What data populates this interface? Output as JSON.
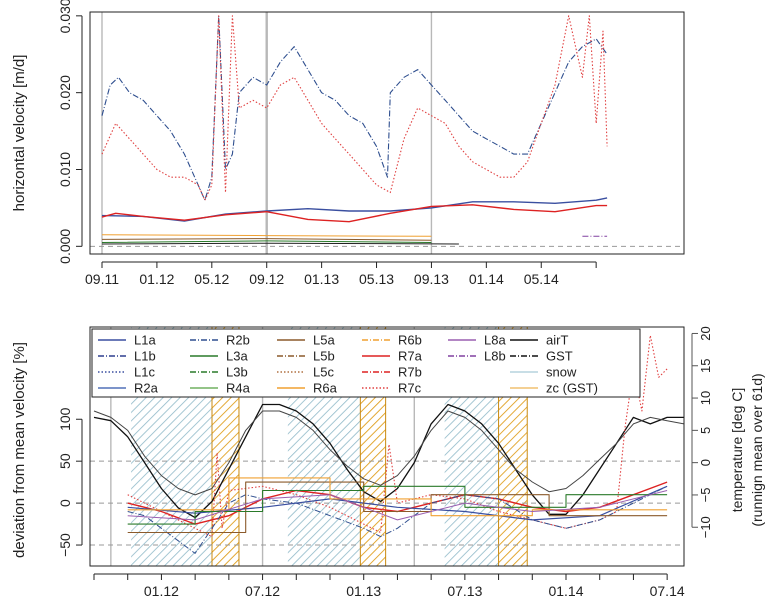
{
  "chart_data": [
    {
      "type": "line",
      "panel": "top",
      "ylabel": "horizontal velocity [m/d]",
      "ylim": [
        -0.001,
        0.0305
      ],
      "yticks": [
        0.0,
        0.01,
        0.02,
        0.03
      ],
      "ytick_labels": [
        "0.000",
        "0.010",
        "0.020",
        "0.030"
      ],
      "xlim": [
        0,
        42.4
      ],
      "xticks": [
        0,
        4,
        8,
        12,
        16,
        20,
        24,
        28,
        32,
        36
      ],
      "xtick_labels": [
        "09.11",
        "01.12",
        "05.12",
        "09.12",
        "01.13",
        "05.13",
        "09.13",
        "01.14",
        "05.14"
      ],
      "xtick_label_pos": [
        0,
        4,
        8,
        12,
        16,
        20,
        24,
        28,
        32
      ],
      "grey_vlines": [
        0,
        12,
        24
      ],
      "series": [
        {
          "name": "R2b",
          "color": "#2f4f8f",
          "dash": "6,2,1,2",
          "width": 1.1,
          "x": [
            0,
            0.6,
            1.2,
            2,
            3,
            4,
            5,
            6,
            7,
            7.5,
            8,
            8.5,
            9,
            9.5,
            10,
            11,
            12,
            13,
            14,
            15,
            16,
            17,
            18,
            19,
            20,
            20.8,
            21,
            22,
            23,
            24,
            25,
            26,
            27,
            28,
            29,
            30,
            31,
            32,
            33,
            34,
            35,
            36,
            36.8
          ],
          "y": [
            0.017,
            0.021,
            0.022,
            0.02,
            0.019,
            0.017,
            0.015,
            0.012,
            0.008,
            0.006,
            0.009,
            0.03,
            0.01,
            0.012,
            0.02,
            0.022,
            0.021,
            0.024,
            0.026,
            0.023,
            0.02,
            0.019,
            0.017,
            0.016,
            0.013,
            0.009,
            0.02,
            0.022,
            0.023,
            0.021,
            0.019,
            0.017,
            0.015,
            0.014,
            0.013,
            0.012,
            0.012,
            0.016,
            0.02,
            0.024,
            0.026,
            0.027,
            0.025
          ]
        },
        {
          "name": "R7c",
          "color": "#e04040",
          "dash": "1.5,2",
          "width": 1.1,
          "x": [
            0,
            1,
            2,
            3,
            4,
            5,
            6,
            7,
            7.5,
            8,
            8.5,
            9,
            9.5,
            10,
            11,
            12,
            13,
            14,
            15,
            16,
            17,
            18,
            19,
            20,
            21,
            22,
            23,
            24,
            25,
            26,
            27,
            28,
            29,
            30,
            31,
            32,
            33,
            34,
            35,
            35.5,
            36,
            36.5,
            36.8
          ],
          "y": [
            0.012,
            0.016,
            0.014,
            0.012,
            0.01,
            0.009,
            0.009,
            0.008,
            0.006,
            0.008,
            0.03,
            0.007,
            0.03,
            0.018,
            0.019,
            0.018,
            0.021,
            0.022,
            0.019,
            0.016,
            0.014,
            0.012,
            0.01,
            0.008,
            0.007,
            0.014,
            0.018,
            0.017,
            0.016,
            0.013,
            0.011,
            0.01,
            0.009,
            0.009,
            0.011,
            0.016,
            0.021,
            0.03,
            0.022,
            0.03,
            0.016,
            0.028,
            0.013
          ]
        },
        {
          "name": "L1a",
          "color": "#3a4fa0",
          "dash": "",
          "width": 1.4,
          "x": [
            0,
            3,
            6,
            9,
            12,
            15,
            18,
            21,
            24,
            27,
            30,
            33,
            36,
            36.8
          ],
          "y": [
            0.004,
            0.0039,
            0.0033,
            0.0042,
            0.0046,
            0.0049,
            0.0046,
            0.0046,
            0.005,
            0.0058,
            0.0058,
            0.0056,
            0.006,
            0.0063
          ]
        },
        {
          "name": "R7a",
          "color": "#dd2222",
          "dash": "",
          "width": 1.4,
          "x": [
            0,
            1,
            3,
            6,
            9,
            12,
            15,
            18,
            21,
            24,
            27,
            30,
            33,
            36,
            36.8
          ],
          "y": [
            0.0038,
            0.0043,
            0.0039,
            0.0034,
            0.0041,
            0.0045,
            0.0035,
            0.0032,
            0.0043,
            0.0052,
            0.0054,
            0.0048,
            0.0045,
            0.0053,
            0.0053
          ]
        },
        {
          "name": "R6a",
          "color": "#f0a030",
          "dash": "",
          "width": 1.0,
          "x": [
            0,
            12,
            24
          ],
          "y": [
            0.0015,
            0.0014,
            0.0013
          ]
        },
        {
          "name": "L5a",
          "color": "#8b5a2b",
          "dash": "",
          "width": 1.0,
          "x": [
            0,
            12,
            24
          ],
          "y": [
            0.0009,
            0.001,
            0.0008
          ]
        },
        {
          "name": "airT",
          "color": "#222222",
          "dash": "",
          "width": 1.0,
          "x": [
            0,
            12,
            26
          ],
          "y": [
            0.0003,
            0.0004,
            0.0003
          ]
        },
        {
          "name": "L3a",
          "color": "#2a7a2a",
          "dash": "",
          "width": 1.0,
          "x": [
            0,
            12,
            24
          ],
          "y": [
            0.0005,
            0.0007,
            0.0005
          ]
        },
        {
          "name": "L8b",
          "color": "#8040a0",
          "dash": "6,2,1,2",
          "width": 1.0,
          "x": [
            35,
            36.8
          ],
          "y": [
            0.0013,
            0.0013
          ]
        }
      ]
    },
    {
      "type": "line",
      "panel": "bottom",
      "ylabel": "deviation from mean velocity [%]",
      "y2label": "temperature [deg C]",
      "y2label_sub": "(runnign mean over 61d)",
      "ylim": [
        -75,
        210
      ],
      "yticks": [
        -50,
        0,
        50,
        100
      ],
      "ytick_labels": [
        "−50",
        "0",
        "50",
        "100"
      ],
      "y2lim": [
        -16,
        21
      ],
      "y2ticks": [
        -10,
        -5,
        0,
        5,
        10,
        15,
        20
      ],
      "y2tick_labels": [
        "−10",
        "−5",
        "0",
        "5",
        "10",
        "15",
        "20"
      ],
      "dashed_hlines": [
        -50,
        0,
        50
      ],
      "xlim": [
        0,
        35
      ],
      "xticks": [
        0,
        2,
        4,
        6,
        8,
        10,
        12,
        14,
        16,
        18,
        20,
        22,
        24,
        26,
        28,
        30,
        32,
        34
      ],
      "xtick_labels": [
        "01.12",
        "07.12",
        "01.13",
        "07.13",
        "01.14",
        "07.14"
      ],
      "xtick_label_pos": [
        4,
        10,
        16,
        22,
        28,
        34
      ],
      "grey_vlines": [
        1,
        10,
        19
      ],
      "snow_periods": [
        [
          2.2,
          7.0
        ],
        [
          11.5,
          15.8
        ],
        [
          20.8,
          24.0
        ]
      ],
      "zc_periods": [
        [
          7.0,
          8.6
        ],
        [
          15.8,
          17.3
        ],
        [
          24.0,
          25.7
        ]
      ],
      "legend": {
        "placement": "top",
        "columns": [
          [
            "L1a",
            "L1b",
            "L1c",
            "R2a"
          ],
          [
            "R2b",
            "L3a",
            "L3b",
            "R4a"
          ],
          [
            "L5a",
            "L5b",
            "L5c",
            "R6a"
          ],
          [
            "R6b",
            "R7a",
            "R7b",
            "R7c"
          ],
          [
            "L8a",
            "L8b"
          ],
          [
            "airT",
            "GST",
            "snow",
            "zc (GST)"
          ]
        ]
      },
      "series": [
        {
          "name": "airT",
          "axis": "right",
          "color": "#111111",
          "dash": "",
          "width": 1.3,
          "x": [
            0,
            1,
            2,
            3,
            4,
            5,
            6,
            7,
            8,
            9,
            10,
            11,
            12,
            13,
            14,
            15,
            16,
            17,
            18,
            19,
            20,
            21,
            22,
            23,
            24,
            25,
            26,
            27,
            28,
            29,
            30,
            31,
            32,
            33,
            34,
            35
          ],
          "y": [
            7,
            6.5,
            4,
            0,
            -4,
            -7,
            -8.5,
            -6,
            -1,
            4,
            9,
            9,
            8,
            6,
            3,
            -1,
            -4.5,
            -6,
            -4,
            0,
            6,
            9,
            8,
            6,
            3,
            -1,
            -5,
            -8,
            -8,
            -5,
            -1,
            3,
            7,
            6,
            7,
            7
          ]
        },
        {
          "name": "GST",
          "axis": "right",
          "color": "#444444",
          "dash": "",
          "width": 1.0,
          "x": [
            0,
            1,
            2,
            3,
            4,
            5,
            6,
            7,
            8,
            9,
            10,
            11,
            12,
            13,
            14,
            15,
            16,
            17,
            18,
            19,
            20,
            21,
            22,
            23,
            24,
            25,
            26,
            27,
            28,
            29,
            30,
            31,
            32,
            33,
            34,
            35
          ],
          "y": [
            8,
            7,
            5,
            1,
            -2,
            -4,
            -5,
            -4,
            0,
            5,
            8,
            8,
            7,
            5,
            2,
            -0.5,
            -2.5,
            -3.5,
            -2,
            1,
            5,
            8,
            7,
            5,
            2,
            -1,
            -3,
            -4.5,
            -4,
            -2,
            0.5,
            3,
            6,
            7,
            6.5,
            6
          ]
        },
        {
          "name": "R7a",
          "axis": "left",
          "color": "#dd2222",
          "dash": "",
          "width": 1.4,
          "x": [
            2,
            4,
            6,
            8,
            10,
            12,
            14,
            16,
            18,
            20,
            22,
            24,
            26,
            28,
            30,
            32,
            34
          ],
          "y": [
            0,
            -10,
            -25,
            -15,
            5,
            15,
            10,
            -5,
            -10,
            0,
            10,
            5,
            -5,
            -10,
            -5,
            10,
            25
          ]
        },
        {
          "name": "R7c",
          "axis": "left",
          "color": "#e04040",
          "dash": "1.5,2",
          "width": 1.1,
          "x": [
            2,
            4,
            6,
            7,
            7.3,
            7.6,
            8,
            10,
            12,
            14,
            16,
            17,
            17.5,
            18,
            20,
            22,
            24,
            26,
            28,
            30,
            31,
            31.5,
            32,
            32.5,
            33,
            33.5,
            34
          ],
          "y": [
            10,
            -10,
            -30,
            -40,
            60,
            -30,
            15,
            20,
            10,
            -5,
            -25,
            -35,
            70,
            0,
            10,
            5,
            -10,
            -20,
            -30,
            -20,
            -10,
            90,
            160,
            110,
            200,
            150,
            160
          ]
        },
        {
          "name": "R2b",
          "axis": "left",
          "color": "#2f4f8f",
          "dash": "6,2,1,2",
          "width": 1.0,
          "x": [
            2,
            3,
            4,
            5,
            6,
            7,
            8,
            9,
            10,
            12,
            14,
            16,
            17,
            18,
            20,
            22,
            24,
            26,
            28,
            30,
            32,
            34
          ],
          "y": [
            -10,
            -15,
            -30,
            -45,
            -60,
            -30,
            0,
            10,
            5,
            0,
            -15,
            -30,
            -40,
            -30,
            0,
            10,
            5,
            -20,
            -30,
            -20,
            0,
            20
          ]
        },
        {
          "name": "L1a",
          "axis": "left",
          "color": "#3a4fa0",
          "dash": "",
          "width": 1.2,
          "x": [
            2,
            6,
            10,
            14,
            18,
            22,
            26,
            30,
            34
          ],
          "y": [
            -5,
            -12,
            -5,
            5,
            -5,
            -10,
            -20,
            -15,
            20
          ]
        },
        {
          "name": "L5a",
          "axis": "left",
          "color": "#8b5a2b",
          "dash": "",
          "width": 1.1,
          "x": [
            2,
            2,
            9,
            9,
            16,
            16,
            20,
            20,
            27,
            27,
            34
          ],
          "y": [
            -35,
            -35,
            -35,
            25,
            25,
            -10,
            -10,
            10,
            10,
            -15,
            -15
          ]
        },
        {
          "name": "L3a",
          "axis": "left",
          "color": "#2a7a2a",
          "dash": "",
          "width": 1.1,
          "x": [
            2,
            6,
            6,
            10,
            10,
            16,
            16,
            22,
            22,
            28,
            28,
            34
          ],
          "y": [
            -25,
            -25,
            -10,
            -10,
            15,
            15,
            20,
            20,
            -5,
            -5,
            10,
            10
          ]
        },
        {
          "name": "R6a",
          "axis": "left",
          "color": "#f0a030",
          "dash": "",
          "width": 1.1,
          "x": [
            2,
            8,
            8,
            14,
            14,
            20,
            20,
            26,
            26,
            34
          ],
          "y": [
            -8,
            -8,
            30,
            30,
            5,
            5,
            -15,
            -15,
            -8,
            -8
          ]
        },
        {
          "name": "L8a",
          "axis": "left",
          "color": "#9a5fb0",
          "dash": "",
          "width": 1.0,
          "x": [
            2,
            6,
            10,
            14,
            18,
            22,
            26,
            30,
            34
          ],
          "y": [
            -15,
            -20,
            5,
            10,
            -20,
            0,
            -10,
            -5,
            15
          ]
        }
      ]
    }
  ]
}
